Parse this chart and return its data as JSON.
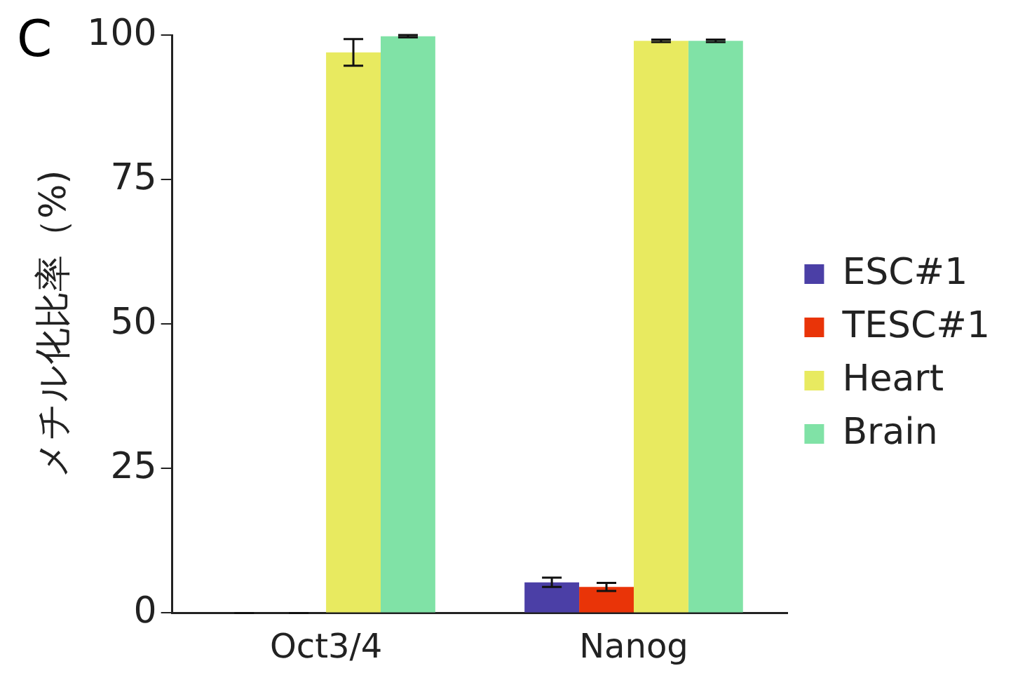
{
  "chart_data": {
    "type": "bar",
    "ylabel": "メチル化比率（%)",
    "categories": [
      "Oct3/4",
      "Nanog"
    ],
    "series": [
      {
        "name": "ESC#1",
        "color": "#4b3fa6",
        "values": [
          0,
          5.3
        ],
        "errors": [
          0,
          0.8
        ]
      },
      {
        "name": "TESC#1",
        "color": "#e93408",
        "values": [
          0,
          4.5
        ],
        "errors": [
          0,
          0.7
        ]
      },
      {
        "name": "Heart",
        "color": "#e8ea60",
        "values": [
          97,
          99
        ],
        "errors": [
          2.3,
          0.2
        ]
      },
      {
        "name": "Brain",
        "color": "#80e2a6",
        "values": [
          99.8,
          99
        ],
        "errors": [
          0.2,
          0.2
        ]
      }
    ],
    "ylim": [
      0,
      100
    ],
    "yticks": [
      0,
      25,
      50,
      75,
      100
    ],
    "grid": false,
    "legend": "right",
    "annotations": [
      "C"
    ]
  }
}
